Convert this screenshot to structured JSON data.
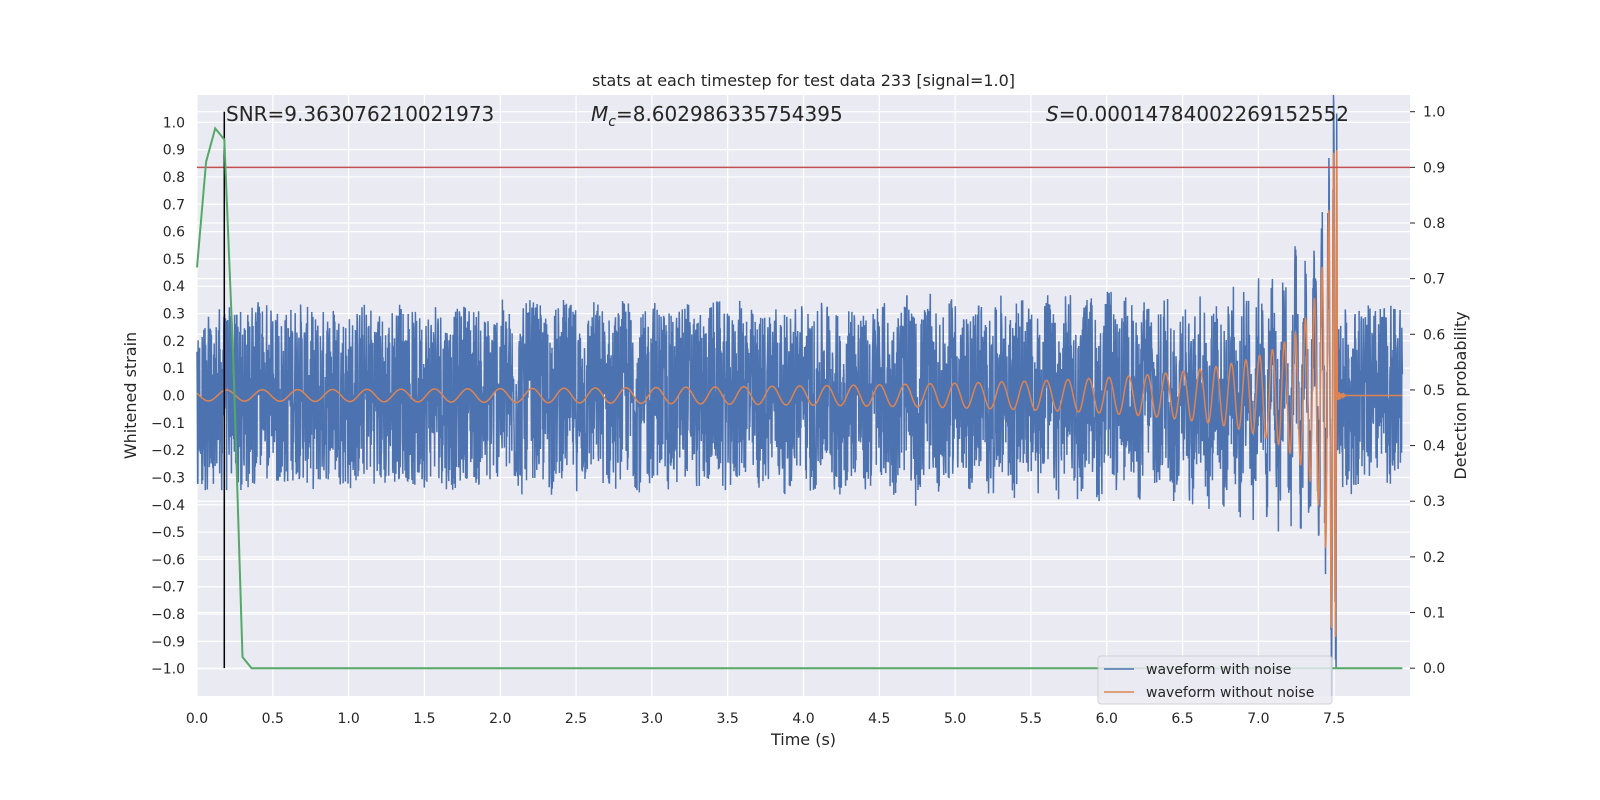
{
  "chart_data": {
    "type": "line",
    "title": "stats at each timestep for test data 233 [signal=1.0]",
    "xlabel": "Time (s)",
    "ylabel": "Whitened strain",
    "y2label": "Detection probability",
    "xlim": [
      0.0,
      8.0
    ],
    "ylim": [
      -1.1,
      1.1
    ],
    "y2lim": [
      -0.05,
      1.03
    ],
    "x_ticks": [
      "0.0",
      "0.5",
      "1.0",
      "1.5",
      "2.0",
      "2.5",
      "3.0",
      "3.5",
      "4.0",
      "4.5",
      "5.0",
      "5.5",
      "6.0",
      "6.5",
      "7.0",
      "7.5"
    ],
    "y_ticks": [
      "1.0",
      "0.9",
      "0.8",
      "0.7",
      "0.6",
      "0.5",
      "0.4",
      "0.3",
      "0.2",
      "0.1",
      "0.0",
      "−0.1",
      "−0.2",
      "−0.3",
      "−0.4",
      "−0.5",
      "−0.6",
      "−0.7",
      "−0.8",
      "−0.9",
      "−1.0"
    ],
    "y2_ticks": [
      "1.0",
      "0.9",
      "0.8",
      "0.7",
      "0.6",
      "0.5",
      "0.4",
      "0.3",
      "0.2",
      "0.1",
      "0.0"
    ],
    "grid": true,
    "legend_position": "lower-right",
    "annotations": {
      "snr": "SNR=9.363076210021973",
      "mc_symbol": "M",
      "mc_sub": "c",
      "mc_value": "=8.602986335754395",
      "s_symbol": "S",
      "s_value": "=0.00014784002269152552"
    },
    "threshold_y2": 0.9,
    "marker_time": 0.18,
    "merger_time": 7.52,
    "series": [
      {
        "name": "waveform with noise",
        "color": "#4c72b0",
        "noise_amplitude": 0.33,
        "peak_strain": 1.0
      },
      {
        "name": "waveform without noise",
        "color": "#dd8452",
        "amplitude_start": 0.02,
        "peak_strain": 0.9
      },
      {
        "color": "#55a868",
        "axis": "right",
        "x": [
          0.0,
          0.06,
          0.12,
          0.18,
          0.24,
          0.3,
          0.36,
          0.42,
          0.48,
          1.0,
          2.0,
          3.0,
          4.0,
          5.0,
          6.0,
          7.0,
          7.5,
          7.95
        ],
        "y": [
          0.72,
          0.91,
          0.97,
          0.95,
          0.55,
          0.02,
          0.0,
          0.0,
          0.0,
          0.0,
          0.0,
          0.0,
          0.0,
          0.0,
          0.0,
          0.0,
          0.0,
          0.0
        ]
      }
    ],
    "colors": {
      "plot_background": "#eaeaf2",
      "grid": "#ffffff",
      "threshold": "#c44e52",
      "marker": "#000000"
    }
  }
}
